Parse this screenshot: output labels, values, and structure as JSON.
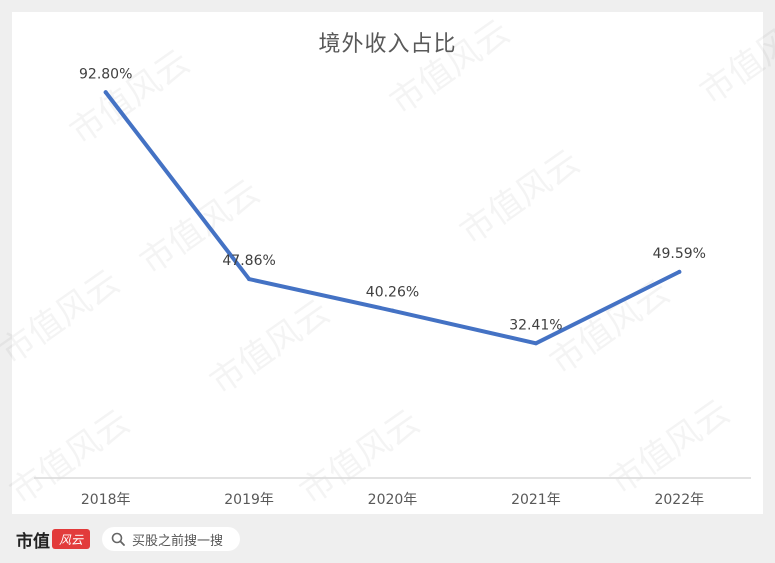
{
  "chart_data": {
    "type": "line",
    "title": "境外收入占比",
    "categories": [
      "2018年",
      "2019年",
      "2020年",
      "2021年",
      "2022年"
    ],
    "series": [
      {
        "values": [
          92.8,
          47.86,
          40.26,
          32.41,
          49.59
        ],
        "color": "#4472c4"
      }
    ],
    "data_labels": [
      "92.80%",
      "47.86%",
      "40.26%",
      "32.41%",
      "49.59%"
    ],
    "ylim": [
      0,
      115
    ],
    "grid": false,
    "legend": "none"
  },
  "watermark_text": "市值风云",
  "footer": {
    "brand": "市值",
    "brand_badge": "风云",
    "search_placeholder": "买股之前搜一搜",
    "search_icon": "search-icon"
  }
}
